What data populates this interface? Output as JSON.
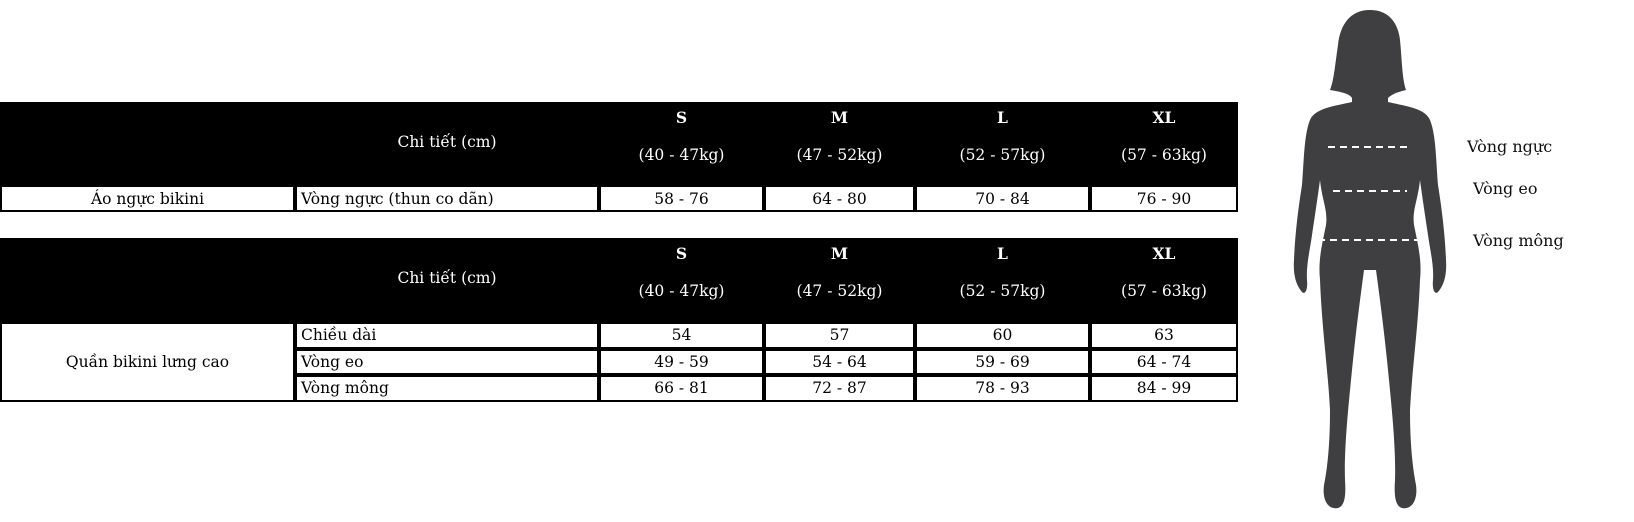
{
  "sizes": [
    {
      "name": "S",
      "weight": "(40 - 47kg)"
    },
    {
      "name": "M",
      "weight": "(47 - 52kg)"
    },
    {
      "name": "L",
      "weight": "(52 - 57kg)"
    },
    {
      "name": "XL",
      "weight": "(57 - 63kg)"
    }
  ],
  "detail_header": "Chi tiết (cm)",
  "top_table": {
    "product": "Áo ngực bikini",
    "rows": [
      {
        "label": "Vòng ngực (thun co dãn)",
        "values": [
          "58 - 76",
          "64 - 80",
          "70 - 84",
          "76 - 90"
        ]
      }
    ]
  },
  "bottom_table": {
    "product": "Quần bikini lưng cao",
    "rows": [
      {
        "label": "Chiều dài",
        "values": [
          "54",
          "57",
          "60",
          "63"
        ]
      },
      {
        "label": "Vòng eo",
        "values": [
          "49 - 59",
          "54 - 64",
          "59 - 69",
          "64 - 74"
        ]
      },
      {
        "label": "Vòng mông",
        "values": [
          "66 - 81",
          "72 - 87",
          "78 - 93",
          "84 - 99"
        ]
      }
    ]
  },
  "figure": {
    "labels": [
      "Vòng ngực",
      "Vòng eo",
      "Vòng mông"
    ],
    "silhouette_color": "#3f3f41"
  }
}
